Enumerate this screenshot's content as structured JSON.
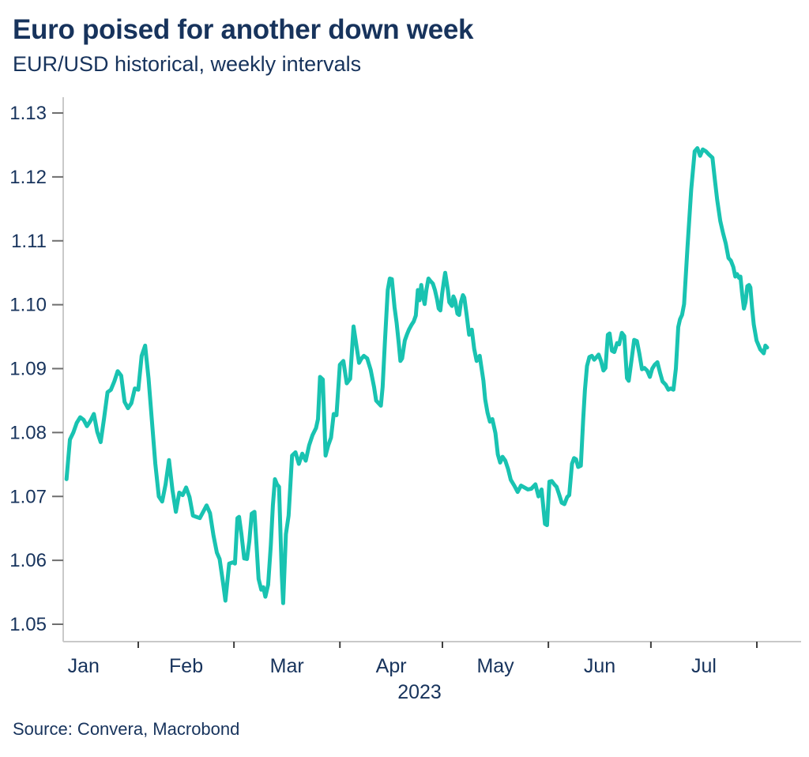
{
  "header": {
    "title": "Euro poised for another down week",
    "subtitle": "EUR/USD historical, weekly intervals"
  },
  "footer": {
    "source": "Source: Convera, Macrobond"
  },
  "colors": {
    "text_navy": "#17335c",
    "line_teal": "#19c3b1",
    "axis_gray": "#c9c9c9",
    "ytick_gray": "#6e6e6e",
    "xtick_dark": "#3d3d3d"
  },
  "chart_data": {
    "type": "line",
    "title": "Euro poised for another down week",
    "subtitle": "EUR/USD historical, weekly intervals",
    "source": "Source: Convera, Macrobond",
    "x_unit": "day_of_year_2023",
    "year_label": "2023",
    "ylim": [
      1.05,
      1.13
    ],
    "yticks": [
      1.05,
      1.06,
      1.07,
      1.08,
      1.09,
      1.1,
      1.11,
      1.12,
      1.13
    ],
    "ytick_labels": [
      "1.05",
      "1.06",
      "1.07",
      "1.08",
      "1.09",
      "1.10",
      "1.11",
      "1.12",
      "1.13"
    ],
    "x_month_boundaries_doy": [
      32,
      60,
      91,
      121,
      152,
      182,
      213
    ],
    "months": [
      {
        "label": "Jan",
        "mid_doy": 16.0
      },
      {
        "label": "Feb",
        "mid_doy": 46.0
      },
      {
        "label": "Mar",
        "mid_doy": 75.5
      },
      {
        "label": "Apr",
        "mid_doy": 106.0
      },
      {
        "label": "May",
        "mid_doy": 136.5
      },
      {
        "label": "Jun",
        "mid_doy": 167.0
      },
      {
        "label": "Jul",
        "mid_doy": 197.5
      }
    ],
    "grid": false,
    "legend": "none",
    "series": [
      {
        "name": "EUR/USD",
        "color": "#19c3b1",
        "points": [
          [
            11,
            1.0727
          ],
          [
            12,
            1.0789
          ],
          [
            13,
            1.08
          ],
          [
            14,
            1.0815
          ],
          [
            15,
            1.0824
          ],
          [
            16,
            1.082
          ],
          [
            17,
            1.081
          ],
          [
            18,
            1.0818
          ],
          [
            19,
            1.0829
          ],
          [
            20,
            1.0801
          ],
          [
            21,
            1.0785
          ],
          [
            22,
            1.0822
          ],
          [
            23,
            1.0863
          ],
          [
            24,
            1.0867
          ],
          [
            25,
            1.088
          ],
          [
            26,
            1.0896
          ],
          [
            27,
            1.0889
          ],
          [
            28,
            1.0848
          ],
          [
            29,
            1.0838
          ],
          [
            30,
            1.0846
          ],
          [
            31,
            1.0869
          ],
          [
            32,
            1.0867
          ],
          [
            33,
            1.092
          ],
          [
            34,
            1.0936
          ],
          [
            35,
            1.0885
          ],
          [
            36,
            1.0818
          ],
          [
            37,
            1.0751
          ],
          [
            38,
            1.07
          ],
          [
            39,
            1.0692
          ],
          [
            40,
            1.0719
          ],
          [
            41,
            1.0757
          ],
          [
            42,
            1.071
          ],
          [
            43,
            1.0676
          ],
          [
            44,
            1.0706
          ],
          [
            45,
            1.0702
          ],
          [
            46,
            1.0714
          ],
          [
            47,
            1.0699
          ],
          [
            48,
            1.067
          ],
          [
            49,
            1.0668
          ],
          [
            50,
            1.0666
          ],
          [
            51,
            1.0676
          ],
          [
            52,
            1.0686
          ],
          [
            53,
            1.0674
          ],
          [
            54,
            1.0639
          ],
          [
            55,
            1.0612
          ],
          [
            55.8,
            1.0602
          ],
          [
            57,
            1.0558
          ],
          [
            57.5,
            1.0537
          ],
          [
            58.6,
            1.0595
          ],
          [
            59.7,
            1.0597
          ],
          [
            60.3,
            1.0595
          ],
          [
            61,
            1.0666
          ],
          [
            61.5,
            1.0668
          ],
          [
            62.2,
            1.0641
          ],
          [
            63,
            1.0603
          ],
          [
            63.8,
            1.0602
          ],
          [
            64.5,
            1.063
          ],
          [
            65.2,
            1.0673
          ],
          [
            66,
            1.0676
          ],
          [
            66.6,
            1.0624
          ],
          [
            67.2,
            1.0571
          ],
          [
            68,
            1.0554
          ],
          [
            68.6,
            1.0558
          ],
          [
            69.2,
            1.0543
          ],
          [
            70,
            1.0562
          ],
          [
            70.8,
            1.0624
          ],
          [
            71.4,
            1.0686
          ],
          [
            72,
            1.0727
          ],
          [
            72.6,
            1.0719
          ],
          [
            73.2,
            1.0715
          ],
          [
            74,
            1.0577
          ],
          [
            74.4,
            1.0533
          ],
          [
            75.2,
            1.0641
          ],
          [
            76,
            1.067
          ],
          [
            77,
            1.0764
          ],
          [
            78,
            1.0769
          ],
          [
            79,
            1.0751
          ],
          [
            80,
            1.0767
          ],
          [
            81,
            1.0756
          ],
          [
            82,
            1.078
          ],
          [
            83,
            1.0796
          ],
          [
            84,
            1.0807
          ],
          [
            84.6,
            1.0821
          ],
          [
            85.2,
            1.0887
          ],
          [
            86,
            1.0883
          ],
          [
            86.8,
            1.0764
          ],
          [
            87.6,
            1.078
          ],
          [
            88.4,
            1.0792
          ],
          [
            89.2,
            1.0829
          ],
          [
            90,
            1.0827
          ],
          [
            91,
            1.0906
          ],
          [
            92,
            1.0912
          ],
          [
            93,
            1.0877
          ],
          [
            94,
            1.0884
          ],
          [
            95,
            1.0966
          ],
          [
            96,
            1.093
          ],
          [
            96.6,
            1.0909
          ],
          [
            97.2,
            1.0915
          ],
          [
            98,
            1.092
          ],
          [
            99,
            1.0916
          ],
          [
            100,
            1.0898
          ],
          [
            101,
            1.0871
          ],
          [
            101.6,
            1.085
          ],
          [
            102.3,
            1.0846
          ],
          [
            103,
            1.0842
          ],
          [
            103.5,
            1.0871
          ],
          [
            104.2,
            1.0944
          ],
          [
            105,
            1.1023
          ],
          [
            105.6,
            1.1041
          ],
          [
            106.2,
            1.104
          ],
          [
            107,
            1.0996
          ],
          [
            107.6,
            1.0972
          ],
          [
            108.2,
            1.0941
          ],
          [
            108.7,
            1.0912
          ],
          [
            109.2,
            1.0916
          ],
          [
            110,
            1.0944
          ],
          [
            110.6,
            1.0953
          ],
          [
            111.2,
            1.0961
          ],
          [
            112,
            1.0969
          ],
          [
            112.6,
            1.0974
          ],
          [
            113.2,
            1.0983
          ],
          [
            113.8,
            1.1023
          ],
          [
            114.3,
            1.1007
          ],
          [
            114.8,
            1.1031
          ],
          [
            115.3,
            1.1013
          ],
          [
            115.8,
            1.1001
          ],
          [
            116.3,
            1.1023
          ],
          [
            116.9,
            1.1041
          ],
          [
            117.5,
            1.1037
          ],
          [
            118.2,
            1.1033
          ],
          [
            118.8,
            1.1023
          ],
          [
            119.4,
            1.1009
          ],
          [
            119.9,
            1.0994
          ],
          [
            120.4,
            1.0991
          ],
          [
            120.9,
            1.1017
          ],
          [
            121.5,
            1.104
          ],
          [
            121.8,
            1.105
          ],
          [
            122.6,
            1.1023
          ],
          [
            123,
            1.1004
          ],
          [
            123.8,
            1.0998
          ],
          [
            124.2,
            1.1013
          ],
          [
            124.7,
            1.1007
          ],
          [
            125.4,
            1.0986
          ],
          [
            125.9,
            1.0984
          ],
          [
            126.4,
            1.1004
          ],
          [
            127,
            1.1015
          ],
          [
            127.4,
            1.1011
          ],
          [
            128.1,
            1.0984
          ],
          [
            128.8,
            1.0953
          ],
          [
            129.6,
            1.0961
          ],
          [
            130.3,
            1.0931
          ],
          [
            131,
            1.0912
          ],
          [
            131.9,
            1.092
          ],
          [
            133,
            1.0881
          ],
          [
            133.5,
            1.0852
          ],
          [
            134.2,
            1.0831
          ],
          [
            134.9,
            1.0817
          ],
          [
            135.6,
            1.0821
          ],
          [
            136.5,
            1.0799
          ],
          [
            137.2,
            1.0766
          ],
          [
            137.9,
            1.0753
          ],
          [
            138.6,
            1.0762
          ],
          [
            139.4,
            1.0756
          ],
          [
            140.2,
            1.0743
          ],
          [
            141,
            1.0726
          ],
          [
            142,
            1.0717
          ],
          [
            143,
            1.0707
          ],
          [
            144,
            1.0717
          ],
          [
            145,
            1.0714
          ],
          [
            146,
            1.0711
          ],
          [
            147,
            1.0712
          ],
          [
            148.2,
            1.0719
          ],
          [
            149.1,
            1.07
          ],
          [
            150,
            1.0711
          ],
          [
            151,
            1.0657
          ],
          [
            151.6,
            1.0655
          ],
          [
            152.3,
            1.0723
          ],
          [
            153,
            1.0724
          ],
          [
            153.7,
            1.0719
          ],
          [
            154.4,
            1.0715
          ],
          [
            155.1,
            1.0704
          ],
          [
            155.9,
            1.069
          ],
          [
            156.7,
            1.0688
          ],
          [
            157.5,
            1.0699
          ],
          [
            158.1,
            1.0702
          ],
          [
            158.9,
            1.0751
          ],
          [
            159.5,
            1.076
          ],
          [
            160.1,
            1.0758
          ],
          [
            160.7,
            1.0746
          ],
          [
            161.5,
            1.0748
          ],
          [
            162.2,
            1.0821
          ],
          [
            162.7,
            1.0867
          ],
          [
            163.3,
            1.0904
          ],
          [
            164,
            1.0918
          ],
          [
            164.7,
            1.092
          ],
          [
            165.4,
            1.0914
          ],
          [
            166.1,
            1.0918
          ],
          [
            166.7,
            1.0922
          ],
          [
            167.4,
            1.0912
          ],
          [
            168.1,
            1.0897
          ],
          [
            168.7,
            1.0901
          ],
          [
            169.4,
            1.0953
          ],
          [
            169.9,
            1.0955
          ],
          [
            170.6,
            1.0928
          ],
          [
            171.3,
            1.0926
          ],
          [
            172.1,
            1.094
          ],
          [
            172.7,
            1.0938
          ],
          [
            173.5,
            1.0956
          ],
          [
            174.2,
            1.0951
          ],
          [
            175,
            1.0885
          ],
          [
            175.5,
            1.0881
          ],
          [
            176.3,
            1.0912
          ],
          [
            177.1,
            1.0945
          ],
          [
            177.9,
            1.0943
          ],
          [
            178.6,
            1.0924
          ],
          [
            179.4,
            1.0899
          ],
          [
            180.1,
            1.0901
          ],
          [
            180.9,
            1.0897
          ],
          [
            181.7,
            1.0887
          ],
          [
            182.4,
            1.09
          ],
          [
            183.1,
            1.0906
          ],
          [
            183.9,
            1.091
          ],
          [
            184.7,
            1.0893
          ],
          [
            185.4,
            1.088
          ],
          [
            186.3,
            1.0875
          ],
          [
            187.1,
            1.0867
          ],
          [
            187.8,
            1.0869
          ],
          [
            188.6,
            1.0867
          ],
          [
            189.3,
            1.09
          ],
          [
            190,
            1.0965
          ],
          [
            190.5,
            1.0977
          ],
          [
            191.1,
            1.0984
          ],
          [
            191.7,
            1.1001
          ],
          [
            192.7,
            1.109
          ],
          [
            193.8,
            1.118
          ],
          [
            194.8,
            1.124
          ],
          [
            195.6,
            1.1245
          ],
          [
            196.4,
            1.1233
          ],
          [
            197.2,
            1.1243
          ],
          [
            198.1,
            1.124
          ],
          [
            199,
            1.1235
          ],
          [
            200,
            1.123
          ],
          [
            200.7,
            1.1196
          ],
          [
            201.4,
            1.1164
          ],
          [
            202.3,
            1.1131
          ],
          [
            203.1,
            1.1112
          ],
          [
            203.9,
            1.1096
          ],
          [
            204.7,
            1.1073
          ],
          [
            205.4,
            1.1069
          ],
          [
            206.1,
            1.1059
          ],
          [
            206.7,
            1.1044
          ],
          [
            207.2,
            1.1048
          ],
          [
            207.8,
            1.1042
          ],
          [
            208.2,
            1.1044
          ],
          [
            208.7,
            1.1017
          ],
          [
            209.2,
            1.0994
          ],
          [
            209.7,
            1.1004
          ],
          [
            210.2,
            1.1029
          ],
          [
            210.7,
            1.1031
          ],
          [
            211.1,
            1.1027
          ],
          [
            211.6,
            1.0996
          ],
          [
            212.1,
            1.0969
          ],
          [
            212.9,
            1.0944
          ],
          [
            214,
            1.093
          ],
          [
            215,
            1.0924
          ],
          [
            215.5,
            1.0936
          ],
          [
            216,
            1.0933
          ]
        ]
      }
    ]
  }
}
